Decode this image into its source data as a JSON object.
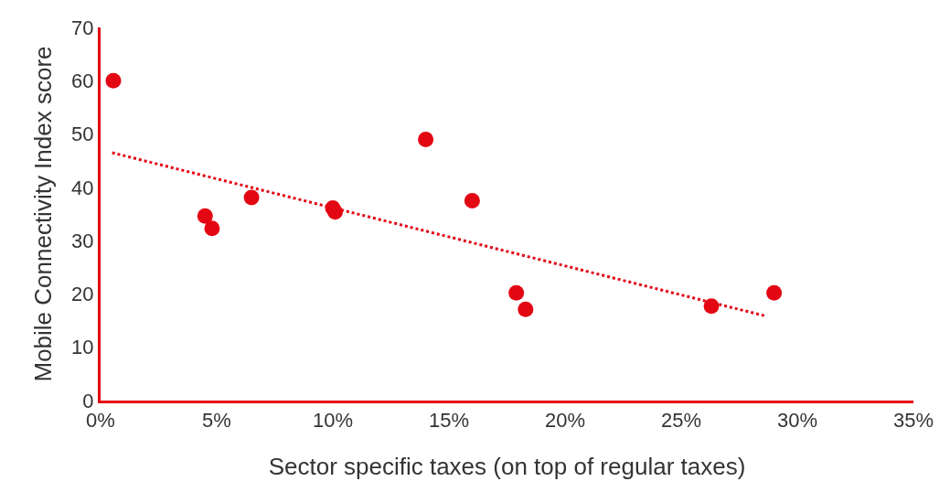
{
  "chart_data": {
    "type": "scatter",
    "xlabel": "Sector specific taxes (on top of regular taxes)",
    "ylabel": "Mobile Connectivity Index score",
    "series": [
      {
        "color": "#e30613",
        "marker": "circle",
        "x": [
          0.55,
          4.5,
          4.8,
          6.5,
          10.0,
          10.1,
          14.0,
          16.0,
          17.9,
          18.3,
          26.3,
          29.0
        ],
        "values": [
          60,
          34.6,
          32.3,
          38.1,
          36.1,
          35.4,
          49.0,
          37.5,
          20.2,
          17.1,
          17.7,
          20.2
        ]
      },
      {
        "type": "line",
        "color": "#e30613",
        "line_style": "dotted",
        "marker": "none",
        "x": [
          0.5,
          28.6
        ],
        "values": [
          46.5,
          15.9
        ]
      }
    ],
    "xlim": [
      0,
      35
    ],
    "ylim": [
      0,
      70
    ],
    "xticks": [
      {
        "value": 0,
        "label": "0%"
      },
      {
        "value": 5,
        "label": "5%"
      },
      {
        "value": 10,
        "label": "10%"
      },
      {
        "value": 15,
        "label": "15%"
      },
      {
        "value": 20,
        "label": "20%"
      },
      {
        "value": 25,
        "label": "25%"
      },
      {
        "value": 30,
        "label": "30%"
      },
      {
        "value": 35,
        "label": "35%"
      }
    ],
    "yticks": [
      0,
      10,
      20,
      30,
      40,
      50,
      60,
      70
    ],
    "legend": false
  }
}
